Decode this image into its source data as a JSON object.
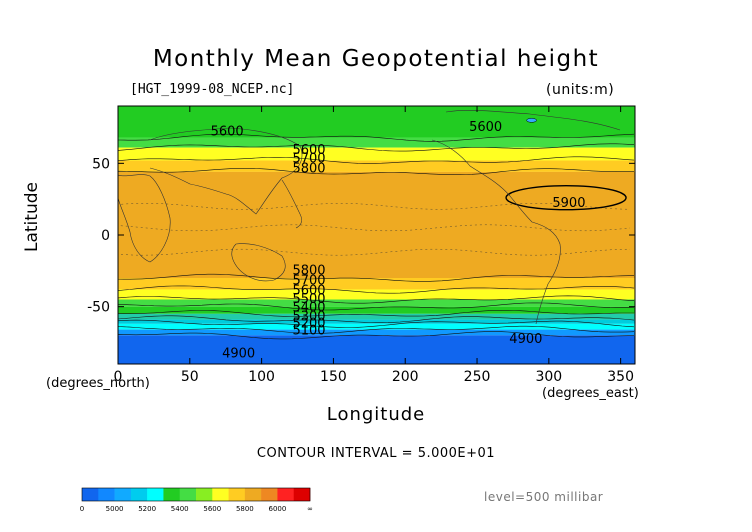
{
  "title": "Monthly Mean Geopotential height",
  "file_label": "[HGT_1999-08_NCEP.nc]",
  "units_label": "(units:m)",
  "x_axis_title": "Longitude",
  "y_axis_title": "Latitude",
  "x_unit_label": "(degrees_east)",
  "y_unit_label": "(degrees_north)",
  "contour_interval": "CONTOUR INTERVAL = 5.000E+01",
  "level_label": "level=500 millibar",
  "chart_data": {
    "type": "heatmap",
    "title": "Monthly Mean Geopotential height",
    "xlabel": "Longitude",
    "ylabel": "Latitude",
    "xlim": [
      0,
      360
    ],
    "ylim": [
      -90,
      90
    ],
    "x_ticks": [
      0,
      50,
      100,
      150,
      200,
      250,
      300,
      350
    ],
    "y_ticks": [
      -50,
      0,
      50
    ],
    "color_bands": [
      {
        "lat_from": 90,
        "lat_to": 68,
        "color": "#22cc22"
      },
      {
        "lat_from": 68,
        "lat_to": 61,
        "color": "#44dd44"
      },
      {
        "lat_from": 61,
        "lat_to": 52,
        "color": "#ffff22"
      },
      {
        "lat_from": 52,
        "lat_to": 44,
        "color": "#ffcc22"
      },
      {
        "lat_from": 44,
        "lat_to": -30,
        "color": "#eeaa22"
      },
      {
        "lat_from": -30,
        "lat_to": -38,
        "color": "#ffcc22"
      },
      {
        "lat_from": -38,
        "lat_to": -45,
        "color": "#ffff22"
      },
      {
        "lat_from": -45,
        "lat_to": -50,
        "color": "#44dd44"
      },
      {
        "lat_from": -50,
        "lat_to": -55,
        "color": "#22cc22"
      },
      {
        "lat_from": -55,
        "lat_to": -59,
        "color": "#22ccaa"
      },
      {
        "lat_from": -59,
        "lat_to": -62,
        "color": "#00ccdd"
      },
      {
        "lat_from": -62,
        "lat_to": -66,
        "color": "#00ffff"
      },
      {
        "lat_from": -66,
        "lat_to": -70,
        "color": "#1199ff"
      },
      {
        "lat_from": -70,
        "lat_to": -90,
        "color": "#1166ee"
      }
    ],
    "contour_labels": [
      {
        "text": "5600",
        "lon": 76,
        "lat": 73
      },
      {
        "text": "5600",
        "lon": 133,
        "lat": 60
      },
      {
        "text": "5700",
        "lon": 133,
        "lat": 54
      },
      {
        "text": "5800",
        "lon": 133,
        "lat": 47
      },
      {
        "text": "5900",
        "lon": 314,
        "lat": 23
      },
      {
        "text": "5600",
        "lon": 256,
        "lat": 76
      },
      {
        "text": "5800",
        "lon": 133,
        "lat": -24
      },
      {
        "text": "5700",
        "lon": 133,
        "lat": -31
      },
      {
        "text": "5600",
        "lon": 133,
        "lat": -38
      },
      {
        "text": "5500",
        "lon": 133,
        "lat": -44
      },
      {
        "text": "5400",
        "lon": 133,
        "lat": -50
      },
      {
        "text": "5300",
        "lon": 133,
        "lat": -56
      },
      {
        "text": "5200",
        "lon": 133,
        "lat": -61
      },
      {
        "text": "5100",
        "lon": 133,
        "lat": -66
      },
      {
        "text": "4900",
        "lon": 84,
        "lat": -82
      },
      {
        "text": "4900",
        "lon": 284,
        "lat": -72
      }
    ],
    "colorbar": {
      "colors": [
        "#1166ee",
        "#1188ff",
        "#11aaff",
        "#00ccee",
        "#00ffff",
        "#22cc22",
        "#44dd44",
        "#88ee22",
        "#ffff22",
        "#ffcc22",
        "#eeaa22",
        "#ee8822",
        "#ff2222",
        "#dd0000"
      ],
      "tick_labels": [
        "0",
        "5000",
        "5200",
        "5400",
        "5600",
        "5800",
        "6000",
        "∞"
      ]
    }
  }
}
